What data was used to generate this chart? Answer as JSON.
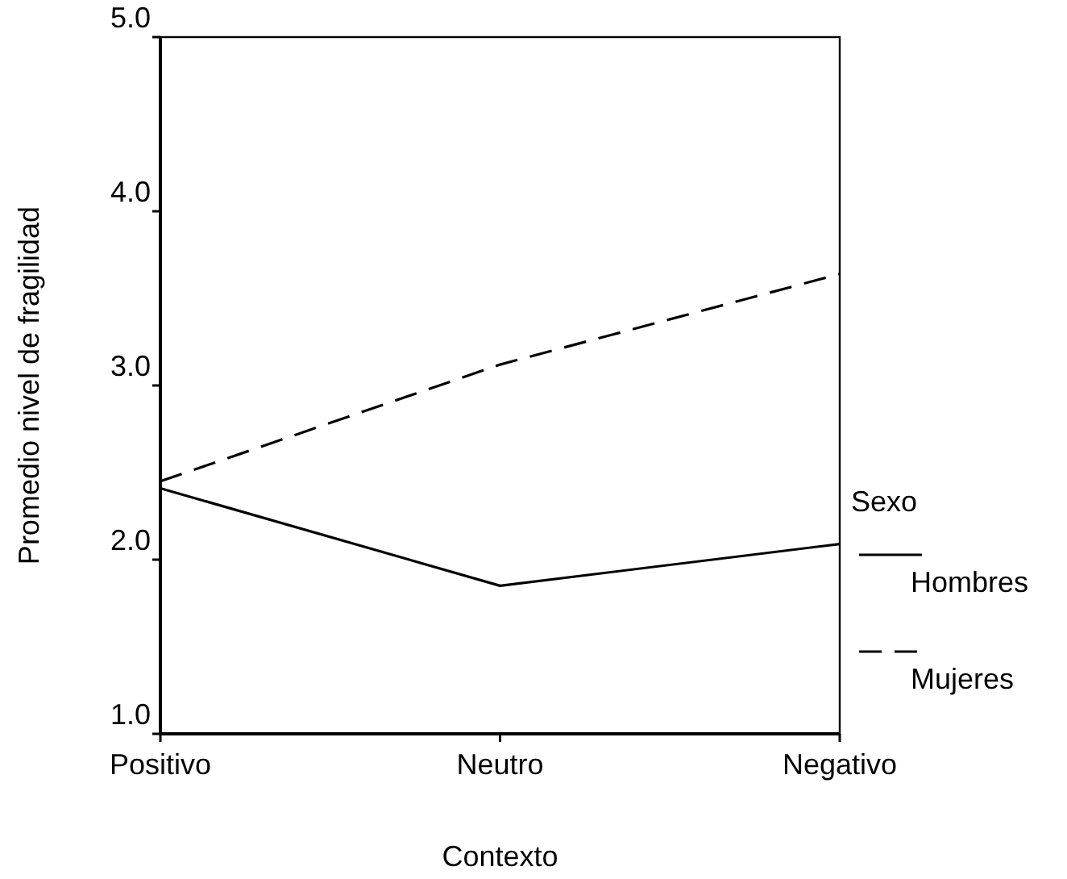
{
  "chart_data": {
    "type": "line",
    "xlabel": "Contexto",
    "ylabel": "Promedio nivel de fragilidad",
    "legend_title": "Sexo",
    "legend": "right",
    "grid": false,
    "categories": [
      "Positivo",
      "Neutro",
      "Negativo"
    ],
    "ylim": [
      1,
      5
    ],
    "yticks": [
      {
        "value": 1,
        "label": "1.0"
      },
      {
        "value": 2,
        "label": "2.0"
      },
      {
        "value": 3,
        "label": "3.0"
      },
      {
        "value": 4,
        "label": "4.0"
      },
      {
        "value": 5,
        "label": "5.0"
      }
    ],
    "series": [
      {
        "name": "Hombres",
        "color": "#000000",
        "line_style": "solid",
        "values": [
          2.41,
          1.85,
          2.09
        ]
      },
      {
        "name": "Mujeres",
        "color": "#000000",
        "line_style": "dashed",
        "values": [
          2.45,
          3.12,
          3.64
        ]
      }
    ]
  }
}
